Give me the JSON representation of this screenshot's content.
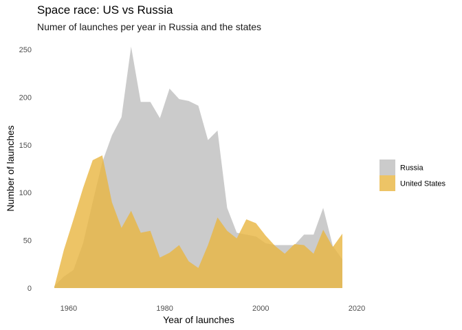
{
  "chart_data": {
    "type": "area",
    "title": "Space race: US vs Russia",
    "subtitle": "Numer of launches per year in Russia and the states",
    "xlabel": "Year of launches",
    "ylabel": "Number of launches",
    "xlim": [
      1954,
      2020
    ],
    "ylim": [
      0,
      255
    ],
    "x_ticks": [
      1960,
      1980,
      2000,
      2020
    ],
    "y_ticks": [
      0,
      50,
      100,
      150,
      200,
      250
    ],
    "grid": false,
    "legend_position": "right",
    "series": [
      {
        "name": "Russia",
        "color": "#bebebe",
        "x": [
          1957,
          1959,
          1961,
          1963,
          1965,
          1967,
          1969,
          1971,
          1973,
          1975,
          1977,
          1979,
          1981,
          1983,
          1985,
          1987,
          1989,
          1991,
          1993,
          1995,
          1997,
          1999,
          2001,
          2003,
          2005,
          2007,
          2009,
          2011,
          2013,
          2015,
          2017
        ],
        "values": [
          2,
          12,
          19,
          47,
          90,
          132,
          160,
          179,
          253,
          195,
          195,
          178,
          209,
          198,
          196,
          191,
          155,
          165,
          84,
          58,
          56,
          54,
          47,
          45,
          45,
          45,
          56,
          56,
          84,
          44,
          30
        ]
      },
      {
        "name": "United States",
        "color": "#e8b540",
        "x": [
          1957,
          1959,
          1961,
          1963,
          1965,
          1967,
          1969,
          1971,
          1973,
          1975,
          1977,
          1979,
          1981,
          1983,
          1985,
          1987,
          1989,
          1991,
          1993,
          1995,
          1997,
          1999,
          2001,
          2003,
          2005,
          2007,
          2009,
          2011,
          2013,
          2015,
          2017
        ],
        "values": [
          1,
          40,
          72,
          105,
          134,
          139,
          90,
          63,
          81,
          58,
          60,
          32,
          37,
          45,
          28,
          21,
          45,
          74,
          60,
          52,
          72,
          68,
          55,
          44,
          36,
          46,
          45,
          36,
          61,
          43,
          57
        ]
      }
    ]
  }
}
